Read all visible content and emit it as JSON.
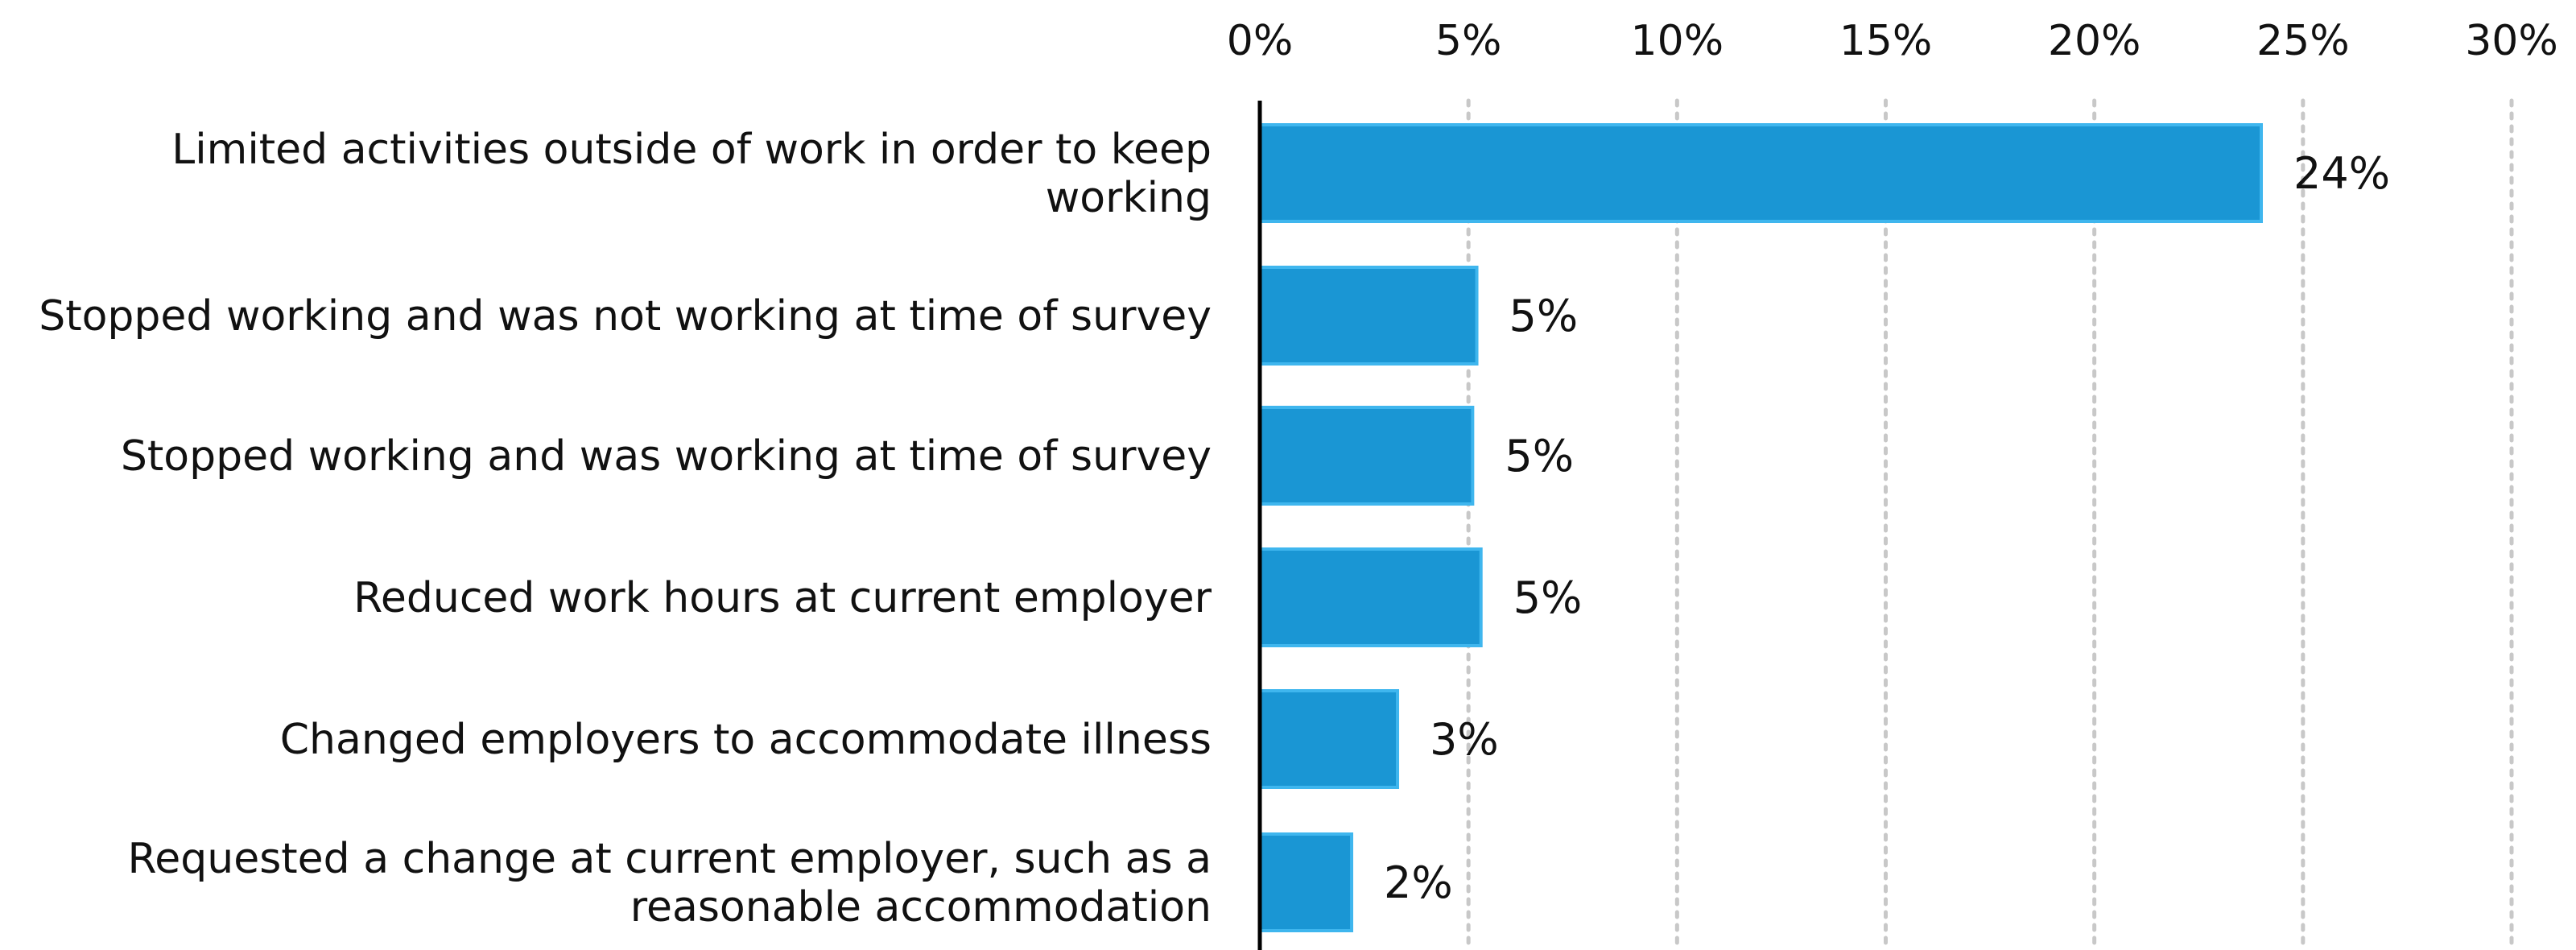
{
  "chart_data": {
    "type": "bar",
    "orientation": "horizontal",
    "categories": [
      "Limited activities outside of work in order to keep working",
      "Stopped working and was not working at time of survey",
      "Stopped working and was working at time of survey",
      "Reduced work hours at current employer",
      "Changed employers to accommodate illness",
      "Requested a change at current employer, such as a reasonable accommodation"
    ],
    "category_lines": [
      [
        "Limited activities outside of work in order to keep",
        "working"
      ],
      [
        "Stopped working and was not working at time of survey"
      ],
      [
        "Stopped working and was working at time of survey"
      ],
      [
        "Reduced work hours at current employer"
      ],
      [
        "Changed employers to accommodate illness"
      ],
      [
        "Requested a change at current employer, such as a",
        "reasonable accommodation"
      ]
    ],
    "values": [
      24,
      5.2,
      5.1,
      5.3,
      3.3,
      2.2
    ],
    "value_labels": [
      "24%",
      "5%",
      "5%",
      "5%",
      "3%",
      "2%"
    ],
    "x_ticks": [
      0,
      5,
      10,
      15,
      20,
      25,
      30
    ],
    "x_tick_labels": [
      "0%",
      "5%",
      "10%",
      "15%",
      "20%",
      "25%",
      "30%"
    ],
    "xlim": [
      0,
      30
    ],
    "title": "",
    "xlabel": "",
    "ylabel": "",
    "x_axis_position": "top",
    "grid": "vertical dotted",
    "legend": "none",
    "colors": {
      "bar_fill": "#1a96d4",
      "bar_stroke": "#3fb6ee",
      "axis": "#000000",
      "grid": "#c8c8c8",
      "text": "#111111"
    }
  }
}
